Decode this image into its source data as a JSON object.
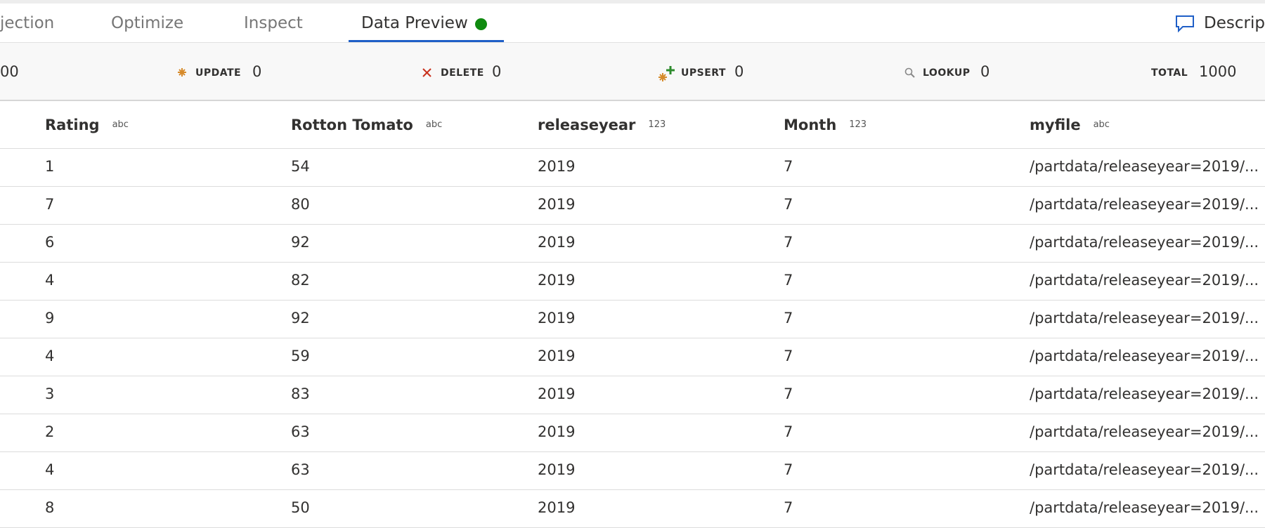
{
  "tabs": [
    "jection",
    "Optimize",
    "Inspect",
    "Data Preview"
  ],
  "description": "Descripti",
  "stats": [
    {
      "label": "",
      "value": "00"
    },
    {
      "label": "UPDATE",
      "value": "0"
    },
    {
      "label": "DELETE",
      "value": "0"
    },
    {
      "label": "UPSERT",
      "value": "0"
    },
    {
      "label": "LOOKUP",
      "value": "0"
    },
    {
      "label": "TOTAL",
      "value": "1000"
    }
  ],
  "table": {
    "columns": [
      {
        "name": "Rating",
        "type": "abc"
      },
      {
        "name": "Rotton Tomato",
        "type": "abc"
      },
      {
        "name": "releaseyear",
        "type": "123"
      },
      {
        "name": "Month",
        "type": "123"
      },
      {
        "name": "myfile",
        "type": "abc"
      }
    ],
    "rows": [
      [
        "1",
        "54",
        "2019",
        "7",
        "/partdata/releaseyear=2019/..."
      ],
      [
        "7",
        "80",
        "2019",
        "7",
        "/partdata/releaseyear=2019/..."
      ],
      [
        "6",
        "92",
        "2019",
        "7",
        "/partdata/releaseyear=2019/..."
      ],
      [
        "4",
        "82",
        "2019",
        "7",
        "/partdata/releaseyear=2019/..."
      ],
      [
        "9",
        "92",
        "2019",
        "7",
        "/partdata/releaseyear=2019/..."
      ],
      [
        "4",
        "59",
        "2019",
        "7",
        "/partdata/releaseyear=2019/..."
      ],
      [
        "3",
        "83",
        "2019",
        "7",
        "/partdata/releaseyear=2019/..."
      ],
      [
        "2",
        "63",
        "2019",
        "7",
        "/partdata/releaseyear=2019/..."
      ],
      [
        "4",
        "63",
        "2019",
        "7",
        "/partdata/releaseyear=2019/..."
      ],
      [
        "8",
        "50",
        "2019",
        "7",
        "/partdata/releaseyear=2019/..."
      ]
    ]
  }
}
